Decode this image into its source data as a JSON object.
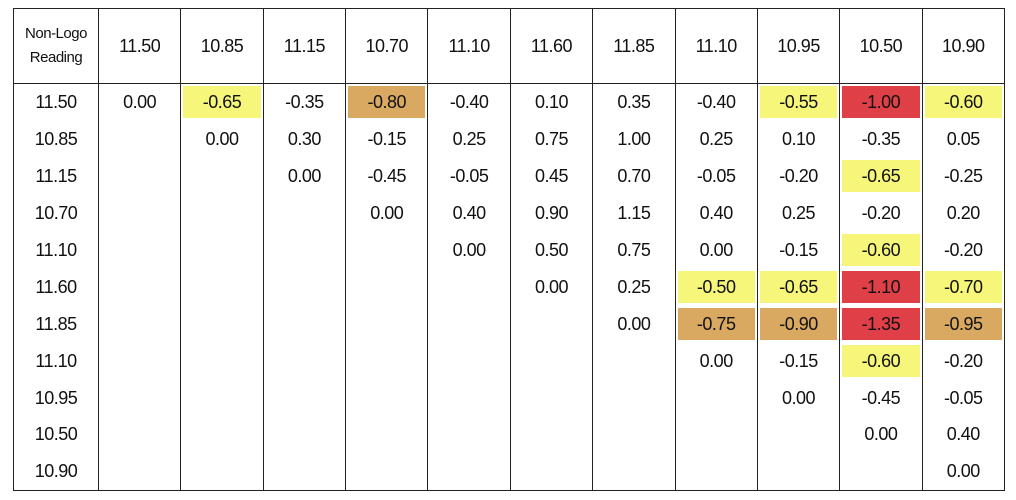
{
  "table": {
    "header": [
      "Non-Logo Reading",
      "11.50",
      "10.85",
      "11.15",
      "10.70",
      "11.10",
      "11.60",
      "11.85",
      "11.10",
      "10.95",
      "10.50",
      "10.90"
    ],
    "rows": [
      [
        "11.50",
        "0.00",
        {
          "text": "-0.65",
          "fill": "#f6f67a"
        },
        "-0.35",
        {
          "text": "-0.80",
          "fill": "#d9a962"
        },
        "-0.40",
        "0.10",
        "0.35",
        "-0.40",
        {
          "text": "-0.55",
          "fill": "#f6f67a"
        },
        {
          "text": "-1.00",
          "fill": "#df4048"
        },
        {
          "text": "-0.60",
          "fill": "#f6f67a"
        }
      ],
      [
        "10.85",
        null,
        "0.00",
        "0.30",
        "-0.15",
        "0.25",
        "0.75",
        "1.00",
        "0.25",
        "0.10",
        "-0.35",
        "0.05"
      ],
      [
        "11.15",
        null,
        null,
        "0.00",
        "-0.45",
        "-0.05",
        "0.45",
        "0.70",
        "-0.05",
        "-0.20",
        {
          "text": "-0.65",
          "fill": "#f6f67a"
        },
        "-0.25"
      ],
      [
        "10.70",
        null,
        null,
        null,
        "0.00",
        "0.40",
        "0.90",
        "1.15",
        "0.40",
        "0.25",
        "-0.20",
        "0.20"
      ],
      [
        "11.10",
        null,
        null,
        null,
        null,
        "0.00",
        "0.50",
        "0.75",
        "0.00",
        "-0.15",
        {
          "text": "-0.60",
          "fill": "#f6f67a"
        },
        "-0.20"
      ],
      [
        "11.60",
        null,
        null,
        null,
        null,
        null,
        "0.00",
        "0.25",
        {
          "text": "-0.50",
          "fill": "#f6f67a"
        },
        {
          "text": "-0.65",
          "fill": "#f6f67a"
        },
        {
          "text": "-1.10",
          "fill": "#df4048"
        },
        {
          "text": "-0.70",
          "fill": "#f6f67a"
        }
      ],
      [
        "11.85",
        null,
        null,
        null,
        null,
        null,
        null,
        "0.00",
        {
          "text": "-0.75",
          "fill": "#d9a962"
        },
        {
          "text": "-0.90",
          "fill": "#d9a962"
        },
        {
          "text": "-1.35",
          "fill": "#df4048"
        },
        {
          "text": "-0.95",
          "fill": "#d9a962"
        }
      ],
      [
        "11.10",
        null,
        null,
        null,
        null,
        null,
        null,
        null,
        "0.00",
        "-0.15",
        {
          "text": "-0.60",
          "fill": "#f6f67a"
        },
        "-0.20"
      ],
      [
        "10.95",
        null,
        null,
        null,
        null,
        null,
        null,
        null,
        null,
        "0.00",
        "-0.45",
        "-0.05"
      ],
      [
        "10.50",
        null,
        null,
        null,
        null,
        null,
        null,
        null,
        null,
        null,
        "0.00",
        "0.40"
      ],
      [
        "10.90",
        null,
        null,
        null,
        null,
        null,
        null,
        null,
        null,
        null,
        null,
        "0.00"
      ]
    ]
  }
}
